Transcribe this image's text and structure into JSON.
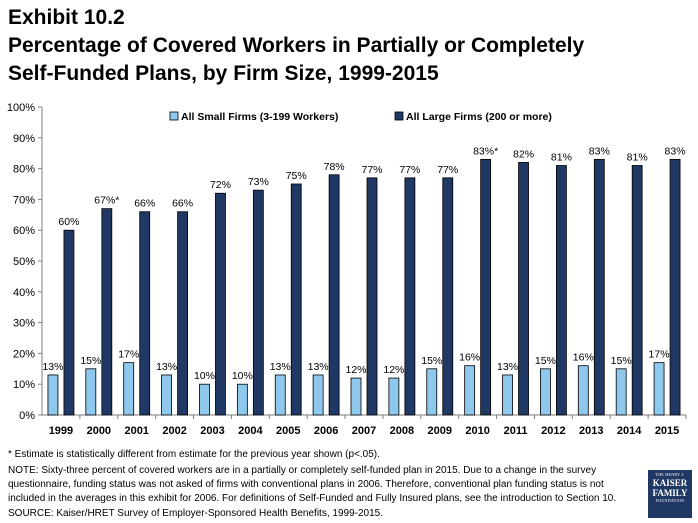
{
  "title": {
    "line1": "Exhibit 10.2",
    "line2": "Percentage of Covered Workers in Partially or Completely",
    "line3": "Self-Funded Plans, by Firm Size, 1999-2015"
  },
  "footnotes": {
    "asterisk": "* Estimate is statistically different from estimate for the previous year shown (p<.05).",
    "note": "NOTE: Sixty-three percent of covered workers are in a partially or completely self-funded plan in 2015. Due to a change in the survey questionnaire, funding status was not asked of firms with conventional plans in 2006.  Therefore, conventional plan funding status is not included in the averages in this exhibit for 2006.  For definitions of Self-Funded and Fully Insured plans, see the introduction to Section 10.",
    "source": "SOURCE: Kaiser/HRET Survey of Employer-Sponsored Health Benefits, 1999-2015."
  },
  "logo": {
    "line1": "THE HENRY J.",
    "line2": "KAISER",
    "line3": "FAMILY",
    "line4": "FOUNDATION"
  },
  "chart_data": {
    "type": "bar",
    "categories": [
      "1999",
      "2000",
      "2001",
      "2002",
      "2003",
      "2004",
      "2005",
      "2006",
      "2007",
      "2008",
      "2009",
      "2010",
      "2011",
      "2012",
      "2013",
      "2014",
      "2015"
    ],
    "series": [
      {
        "name": "All Small Firms (3-199 Workers)",
        "color": "#8ec8ec",
        "values": [
          13,
          15,
          17,
          13,
          10,
          10,
          13,
          13,
          12,
          12,
          15,
          16,
          13,
          15,
          16,
          15,
          17
        ],
        "labels": [
          "13%",
          "15%",
          "17%",
          "13%",
          "10%",
          "10%",
          "13%",
          "13%",
          "12%",
          "12%",
          "15%",
          "16%",
          "13%",
          "15%",
          "16%",
          "15%",
          "17%"
        ]
      },
      {
        "name": "All Large Firms (200 or more)",
        "color": "#1f3864",
        "values": [
          60,
          67,
          66,
          66,
          72,
          73,
          75,
          78,
          77,
          77,
          77,
          83,
          82,
          81,
          83,
          81,
          83
        ],
        "labels": [
          "60%",
          "67%*",
          "66%",
          "66%",
          "72%",
          "73%",
          "75%",
          "78%",
          "77%",
          "77%",
          "77%",
          "83%*",
          "82%",
          "81%",
          "83%",
          "81%",
          "83%"
        ]
      }
    ],
    "ylim": [
      0,
      100
    ],
    "yticks": [
      "0%",
      "10%",
      "20%",
      "30%",
      "40%",
      "50%",
      "60%",
      "70%",
      "80%",
      "90%",
      "100%"
    ],
    "legend": "top-center",
    "grid": false
  }
}
